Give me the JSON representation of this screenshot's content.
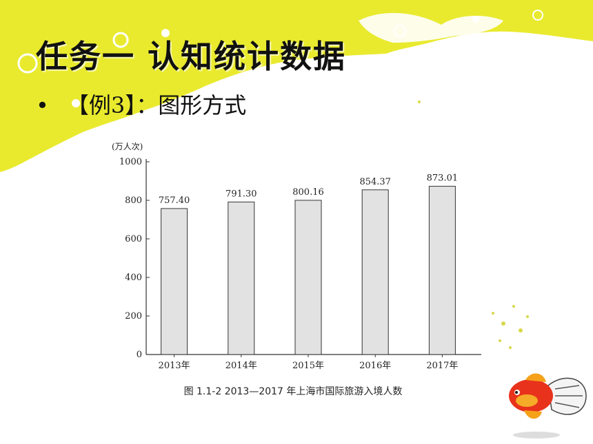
{
  "slide": {
    "title": "任务一  认知统计数据",
    "bullet": "•",
    "subtitle": "【例3】：图形方式"
  },
  "colors": {
    "background_yellow": "#e9ea2e",
    "bar_fill": "#e2e2e2",
    "bar_stroke": "#333333"
  },
  "chart_data": {
    "type": "bar",
    "unit_label": "(万人次)",
    "categories": [
      "2013年",
      "2014年",
      "2015年",
      "2016年",
      "2017年"
    ],
    "values": [
      757.4,
      791.3,
      800.16,
      854.37,
      873.01
    ],
    "value_labels": [
      "757.40",
      "791.30",
      "800.16",
      "854.37",
      "873.01"
    ],
    "ylim": [
      0,
      1000
    ],
    "yticks": [
      0,
      200,
      400,
      600,
      800,
      1000
    ],
    "ytick_labels": [
      "0",
      "200",
      "400",
      "600",
      "800",
      "1000"
    ],
    "caption": "图 1.1-2   2013—2017 年上海市国际旅游入境人数",
    "grid": false
  }
}
